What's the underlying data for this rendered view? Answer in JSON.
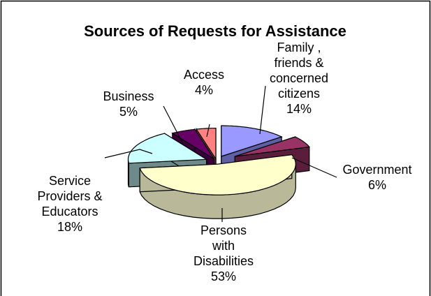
{
  "chart_data": {
    "type": "pie",
    "style": "3d-exploded",
    "title": "Sources of Requests for Assistance",
    "slices": [
      {
        "name": "Family ,\nfriends &\nconcerned\ncitizens",
        "value": 14,
        "label": "14%",
        "color": "#9999ff",
        "side": "#5f5fa6"
      },
      {
        "name": "Government",
        "value": 6,
        "label": "6%",
        "color": "#993366",
        "side": "#5a1e3c"
      },
      {
        "name": "Persons\nwith\nDisabilities",
        "value": 53,
        "label": "53%",
        "color": "#ffffcc",
        "side": "#b9b99a"
      },
      {
        "name": "Service\nProviders &\nEducators",
        "value": 18,
        "label": "18%",
        "color": "#ccffff",
        "side": "#6f8a8a"
      },
      {
        "name": "Business",
        "value": 5,
        "label": "5%",
        "color": "#660066",
        "side": "#3a003a"
      },
      {
        "name": "Access",
        "value": 4,
        "label": "4%",
        "color": "#ff8080",
        "side": "#a04848"
      }
    ],
    "legend": "none"
  }
}
